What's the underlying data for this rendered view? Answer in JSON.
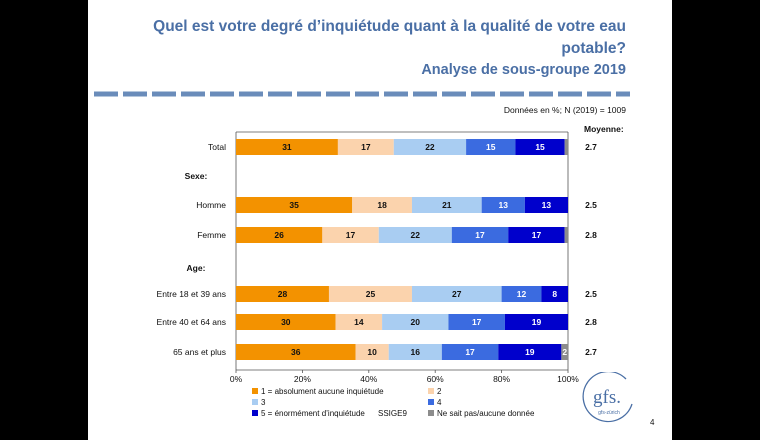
{
  "title": "Quel est votre degré d’inquiétude quant à la qualité de votre eau potable?",
  "subtitle": "Analyse de sous-groupe 2019",
  "note": "Données en %; N (2019) = 1009",
  "code": "SSIGE9",
  "page_number": "4",
  "logo": {
    "main": "gfs.",
    "sub": "gfs-zürich"
  },
  "colors": {
    "title": "#4a6fa5",
    "dash": "#6a8cba",
    "c1": "#f39200",
    "c2": "#fbd3ad",
    "c3": "#a9cdf2",
    "c4": "#3b6be0",
    "c5": "#0000cc",
    "cna": "#8c8c8c"
  },
  "chart_data": {
    "type": "bar",
    "orientation": "horizontal",
    "stacked": true,
    "xlim": [
      0,
      100
    ],
    "x_ticks": [
      "0%",
      "20%",
      "40%",
      "60%",
      "80%",
      "100%"
    ],
    "mean_header": "Moyenne:",
    "rows": [
      {
        "kind": "bar",
        "label": "Total",
        "values": [
          31,
          17,
          22,
          15,
          15,
          1
        ],
        "mean": "2.7"
      },
      {
        "kind": "group",
        "label": "Sexe:"
      },
      {
        "kind": "bar",
        "label": "Homme",
        "values": [
          35,
          18,
          21,
          13,
          13,
          0
        ],
        "mean": "2.5"
      },
      {
        "kind": "bar",
        "label": "Femme",
        "values": [
          26,
          17,
          22,
          17,
          17,
          1
        ],
        "mean": "2.8"
      },
      {
        "kind": "group",
        "label": "Age:"
      },
      {
        "kind": "bar",
        "label": "Entre 18 et 39 ans",
        "values": [
          28,
          25,
          27,
          12,
          8,
          0
        ],
        "mean": "2.5"
      },
      {
        "kind": "bar",
        "label": "Entre 40 et 64 ans",
        "values": [
          30,
          14,
          20,
          17,
          19,
          0
        ],
        "mean": "2.8"
      },
      {
        "kind": "bar",
        "label": "65 ans et plus",
        "values": [
          36,
          10,
          16,
          17,
          19,
          2
        ],
        "mean": "2.7"
      }
    ],
    "series": [
      {
        "name": "1 = absolument aucune inquiétude",
        "color": "#f39200"
      },
      {
        "name": "2",
        "color": "#fbd3ad"
      },
      {
        "name": "3",
        "color": "#a9cdf2"
      },
      {
        "name": "4",
        "color": "#3b6be0"
      },
      {
        "name": "5 = énormément d’inquiétude",
        "color": "#0000cc"
      },
      {
        "name": "Ne sait pas/aucune donnée",
        "color": "#8c8c8c"
      }
    ]
  }
}
